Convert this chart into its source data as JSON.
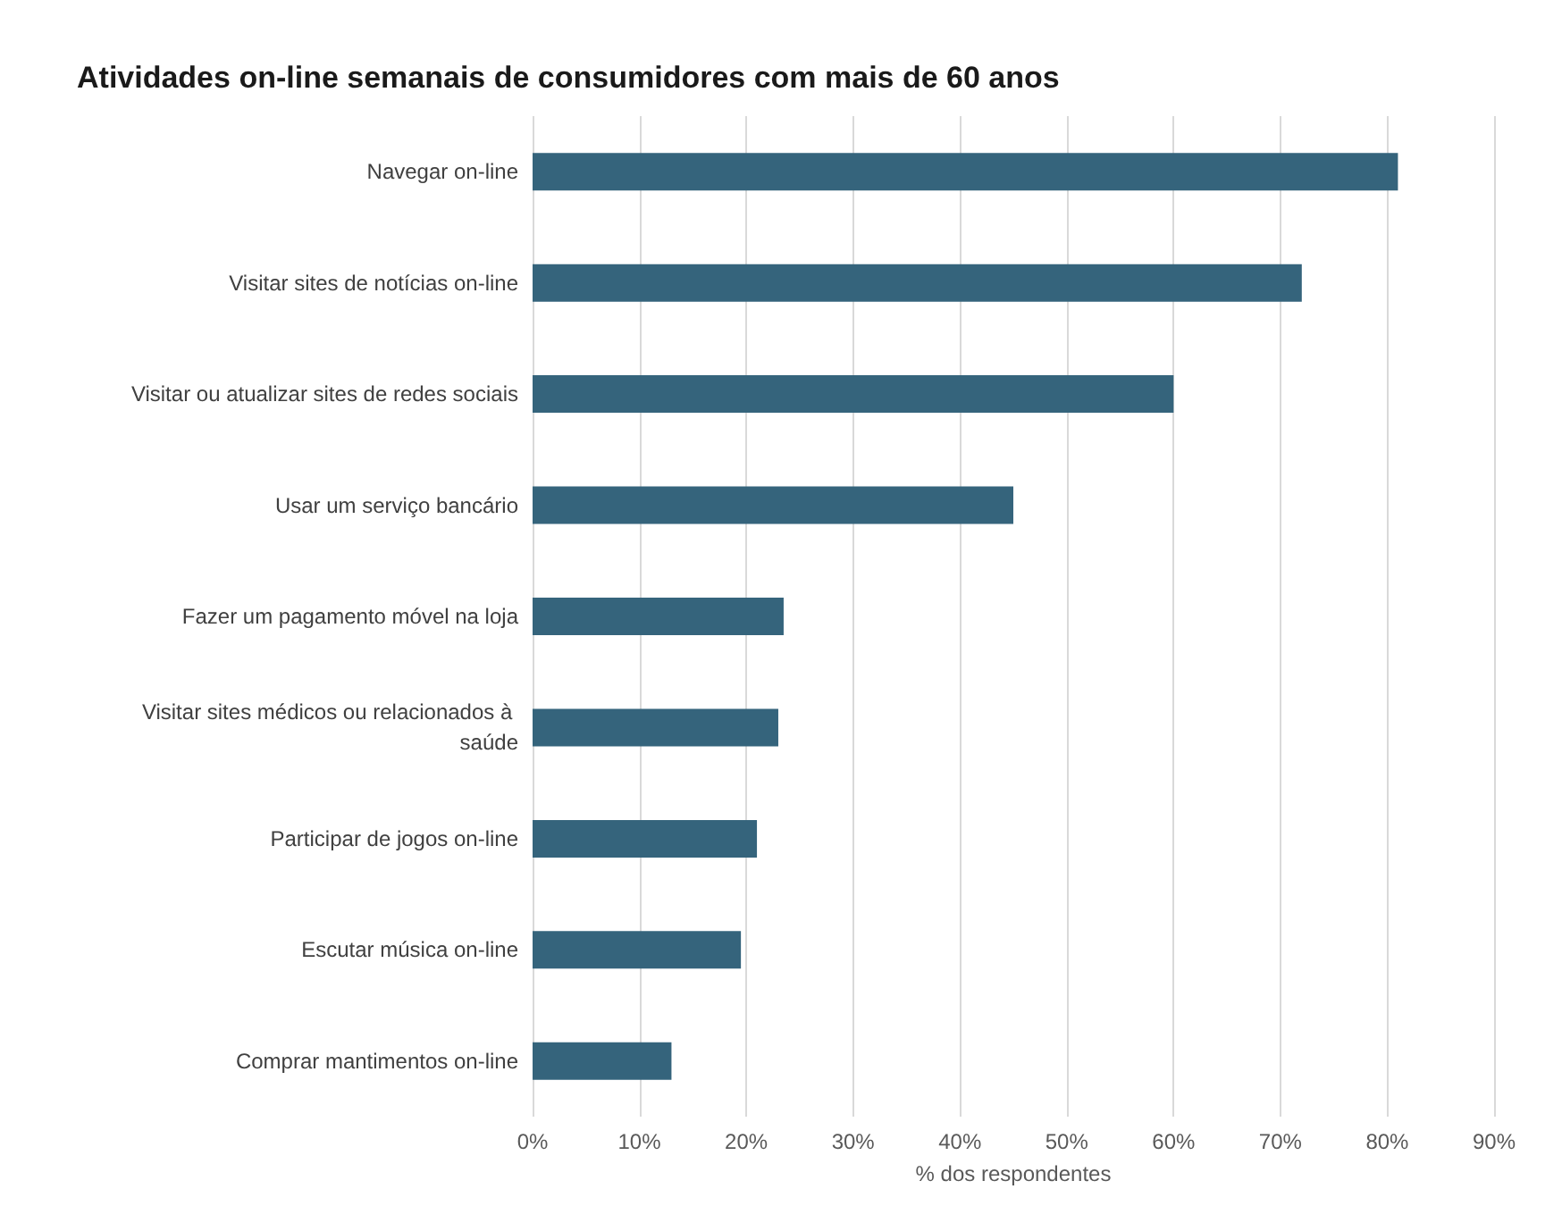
{
  "chart_data": {
    "type": "bar",
    "orientation": "horizontal",
    "title": "Atividades on-line semanais de consumidores com mais de 60 anos",
    "xlabel": "% dos respondentes",
    "categories": [
      "Navegar on-line",
      "Visitar sites de notícias on-line",
      "Visitar ou atualizar sites de redes sociais",
      "Usar um serviço bancário",
      "Fazer um pagamento móvel na loja",
      "Visitar sites médicos ou relacionados à saúde",
      "Participar de jogos on-line",
      "Escutar música on-line",
      "Comprar mantimentos on-line"
    ],
    "values": [
      81,
      72,
      60,
      45,
      23.5,
      23,
      21,
      19.5,
      13
    ],
    "color": "#35647c",
    "xlim": [
      0,
      90
    ],
    "xticks": [
      {
        "value": 0,
        "label": "0%"
      },
      {
        "value": 10,
        "label": "10%"
      },
      {
        "value": 20,
        "label": "20%"
      },
      {
        "value": 30,
        "label": "30%"
      },
      {
        "value": 40,
        "label": "40%"
      },
      {
        "value": 50,
        "label": "50%"
      },
      {
        "value": 60,
        "label": "60%"
      },
      {
        "value": 70,
        "label": "70%"
      },
      {
        "value": 80,
        "label": "80%"
      },
      {
        "value": 90,
        "label": "90%"
      }
    ],
    "grid": "x"
  }
}
